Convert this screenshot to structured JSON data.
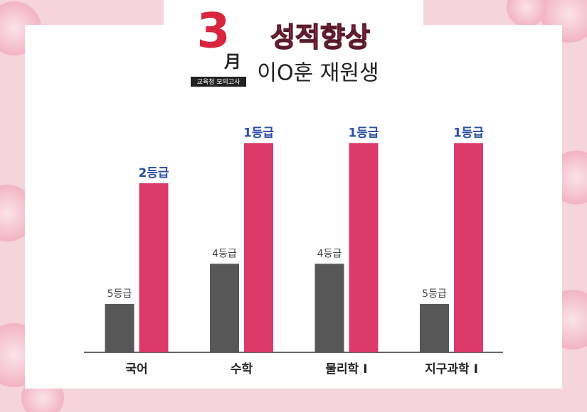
{
  "header": {
    "month": "3",
    "month_char": "月",
    "exam": "교육청 모의고사",
    "title": "성적향상",
    "student": "이O훈 재원생"
  },
  "chart_data": {
    "type": "bar",
    "categories": [
      "국어",
      "수학",
      "물리학 I",
      "지구과학 I"
    ],
    "series": [
      {
        "color": "#575757",
        "values": [
          5,
          4,
          4,
          5
        ],
        "value_labels": [
          "5등급",
          "4등급",
          "4등급",
          "5등급"
        ]
      },
      {
        "color": "#dc3a6b",
        "values": [
          2,
          1,
          1,
          1
        ],
        "value_labels": [
          "2등급",
          "1등급",
          "1등급",
          "1등급"
        ]
      }
    ],
    "ylim": [
      6.2,
      0.8
    ]
  }
}
